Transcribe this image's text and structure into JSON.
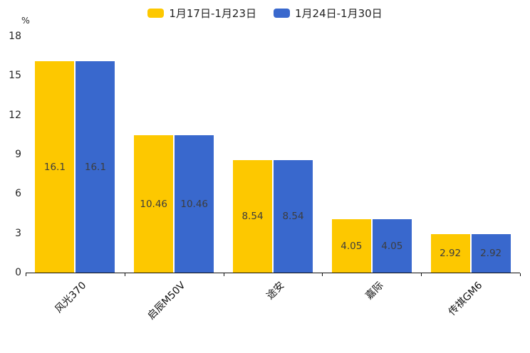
{
  "legend": {
    "items": [
      {
        "label": "1月17日-1月23日",
        "color": "#FDC800"
      },
      {
        "label": "1月24日-1月30日",
        "color": "#3968CD"
      }
    ]
  },
  "chart_data": {
    "type": "bar",
    "categories": [
      "风光370",
      "启辰M50V",
      "途安",
      "嘉际",
      "传祺GM6"
    ],
    "series": [
      {
        "name": "1月17日-1月23日",
        "color": "#FDC800",
        "values": [
          16.1,
          10.46,
          8.54,
          4.05,
          2.92
        ]
      },
      {
        "name": "1月24日-1月30日",
        "color": "#3968CD",
        "values": [
          16.1,
          10.46,
          8.54,
          4.05,
          2.92
        ]
      }
    ],
    "title": "",
    "xlabel": "",
    "ylabel": "%",
    "ylim": [
      0,
      18
    ],
    "ytick_step": 3,
    "yticks": [
      0,
      3,
      6,
      9,
      12,
      15,
      18
    ],
    "grid": false,
    "legend_position": "top",
    "value_labels_inside_bars": true,
    "x_labels_rotation_deg": 45
  }
}
